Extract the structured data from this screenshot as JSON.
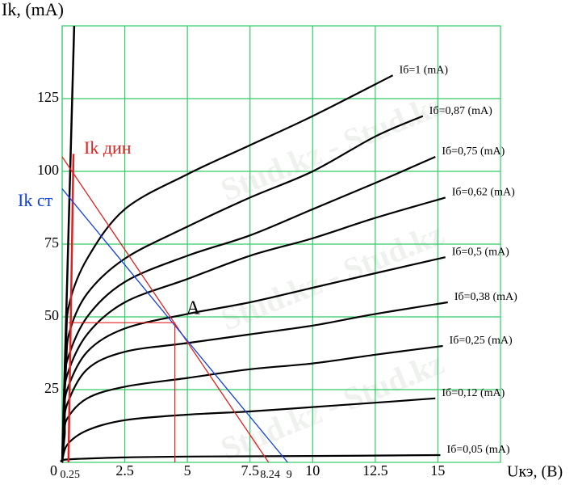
{
  "chart_data": {
    "type": "line",
    "y_label": "Ik, (mA)",
    "x_label": "Uкэ, (B)",
    "xlim": [
      0,
      17.5
    ],
    "ylim": [
      0,
      150
    ],
    "xticks": [
      0,
      2.5,
      5,
      7.5,
      10,
      12.5,
      15
    ],
    "extra_xticks": [
      0.25,
      8.24,
      9
    ],
    "yticks": [
      25,
      50,
      75,
      100,
      125
    ],
    "grid": true,
    "grid_color": "#33cc66",
    "series": [
      {
        "name": "Iб=1 (mA)",
        "color": "#000000",
        "x": [
          0,
          0.15,
          0.3,
          1,
          2.5,
          5,
          7.5,
          10,
          13.2
        ],
        "values": [
          0,
          40,
          55,
          70,
          87,
          99,
          109,
          119,
          133
        ]
      },
      {
        "name": "Iб=0,87 (mA)",
        "color": "#000000",
        "x": [
          0,
          0.15,
          0.3,
          1,
          2.5,
          5,
          7.5,
          10,
          12.5,
          14.4
        ],
        "values": [
          0,
          32,
          45,
          58,
          70,
          81,
          91,
          100,
          112,
          119
        ]
      },
      {
        "name": "Iб=0,75 (mA)",
        "color": "#000000",
        "x": [
          0,
          0.1,
          0.2,
          1,
          2.5,
          5,
          7.5,
          10,
          12.5,
          14.9
        ],
        "values": [
          0,
          25,
          35,
          50,
          62,
          71,
          78,
          87,
          96,
          105
        ]
      },
      {
        "name": "Iб=0,62 (mA)",
        "color": "#000000",
        "x": [
          0,
          0.1,
          0.2,
          1,
          2.5,
          5,
          7.5,
          10,
          12.5,
          15.3
        ],
        "values": [
          0,
          20,
          30,
          44,
          55,
          63,
          71,
          77,
          84,
          91
        ]
      },
      {
        "name": "Iб=0,5 (mA)",
        "color": "#000000",
        "x": [
          0,
          0.1,
          0.2,
          1,
          2.5,
          5,
          7.5,
          10,
          12.5,
          15.3
        ],
        "values": [
          0,
          16,
          25,
          38,
          46,
          51,
          55,
          60,
          65,
          70.5
        ]
      },
      {
        "name": "Iб=0,38 (mA)",
        "color": "#000000",
        "x": [
          0,
          0.1,
          0.2,
          1,
          2.5,
          5,
          7.5,
          10,
          12.5,
          15.4
        ],
        "values": [
          0,
          12,
          20,
          32,
          38,
          41,
          44,
          47,
          51,
          55
        ]
      },
      {
        "name": "Iб=0,25 (mA)",
        "color": "#000000",
        "x": [
          0,
          0.1,
          0.2,
          1,
          2.5,
          5,
          7.5,
          10,
          12.5,
          15.2
        ],
        "values": [
          0,
          9,
          15,
          22,
          26,
          29,
          32,
          34,
          37,
          40
        ]
      },
      {
        "name": "Iб=0,12 (mA)",
        "color": "#000000",
        "x": [
          0,
          0.2,
          1,
          2.5,
          5,
          7.5,
          10,
          12.5,
          14.9
        ],
        "values": [
          0,
          6,
          11,
          14.5,
          16.4,
          17.5,
          19,
          20.5,
          22
        ]
      },
      {
        "name": "Iб=0,05 (mA)",
        "color": "#000000",
        "x": [
          0,
          0.2,
          2.5,
          5,
          10,
          15.1
        ],
        "values": [
          0,
          1,
          1.7,
          2,
          2.2,
          2.5
        ]
      }
    ],
    "saturation_line": {
      "color": "#000000",
      "x": [
        0,
        0.48
      ],
      "values": [
        0,
        150
      ]
    },
    "dynamic_line": {
      "name": "Ik дин",
      "color": "#e02020",
      "x": [
        0,
        8.24
      ],
      "values": [
        105,
        0
      ]
    },
    "static_line": {
      "name": "Ik ст",
      "color": "#1040e0",
      "x": [
        0,
        9
      ],
      "values": [
        94,
        0
      ]
    },
    "red_vertical": {
      "color": "#e02020",
      "x": [
        0.25,
        0.45
      ],
      "values": [
        0,
        106
      ]
    },
    "operating_point": {
      "label": "A",
      "x": 4.5,
      "y": 48,
      "color": "#e02020"
    },
    "watermark": "Stud.kz - Stud.kz"
  }
}
